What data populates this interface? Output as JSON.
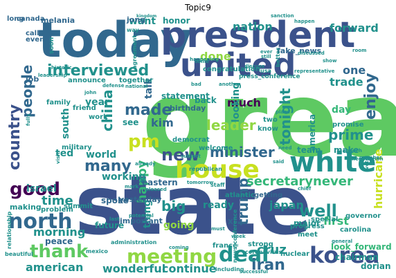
{
  "title": "Topic9",
  "palette": {
    "purple": "#440154",
    "indigo": "#3b528b",
    "blue": "#31688e",
    "teal": "#21918c",
    "green": "#35b779",
    "lime": "#5ec962",
    "yellowgreen": "#90d743",
    "yellow": "#c8e020"
  },
  "words": [
    {
      "id": "great",
      "text": "great"
    },
    {
      "id": "state",
      "text": "state"
    },
    {
      "id": "today",
      "text": "today"
    },
    {
      "id": "president",
      "text": "president"
    },
    {
      "id": "united",
      "text": "united"
    },
    {
      "id": "white",
      "text": "white"
    },
    {
      "id": "house",
      "text": "house"
    },
    {
      "id": "korea",
      "text": "korea"
    },
    {
      "id": "meeting",
      "text": "meeting"
    },
    {
      "id": "north",
      "text": "north"
    },
    {
      "id": "deal",
      "text": "deal"
    },
    {
      "id": "thank",
      "text": "thank"
    },
    {
      "id": "good",
      "text": "good"
    },
    {
      "id": "new",
      "text": "new"
    },
    {
      "id": "pm",
      "text": "pm"
    },
    {
      "id": "interviewed",
      "text": "interviewed"
    },
    {
      "id": "country",
      "text": "country"
    },
    {
      "id": "people",
      "text": "people"
    },
    {
      "id": "china",
      "text": "china"
    },
    {
      "id": "made",
      "text": "made"
    },
    {
      "id": "many",
      "text": "many"
    },
    {
      "id": "iran",
      "text": "iran"
    },
    {
      "id": "minister",
      "text": "minister"
    },
    {
      "id": "leader",
      "text": "leader"
    },
    {
      "id": "enjoy",
      "text": "enjoy"
    },
    {
      "id": "well",
      "text": "well"
    },
    {
      "id": "trump",
      "text": "trump"
    },
    {
      "id": "prime",
      "text": "prime"
    },
    {
      "id": "nation",
      "text": "nation"
    },
    {
      "id": "forward",
      "text": "forward"
    },
    {
      "id": "done",
      "text": "done"
    },
    {
      "id": "tonight",
      "text": "tonight"
    },
    {
      "id": "american",
      "text": "american"
    },
    {
      "id": "wonderful",
      "text": "wonderful"
    },
    {
      "id": "continue",
      "text": "continue"
    },
    {
      "id": "big",
      "text": "big"
    },
    {
      "id": "secretary",
      "text": "secretary"
    },
    {
      "id": "never",
      "text": "never"
    },
    {
      "id": "japan",
      "text": "japan"
    },
    {
      "id": "cruz",
      "text": "cruz"
    },
    {
      "id": "happy",
      "text": "happy"
    },
    {
      "id": "kim",
      "text": "kim"
    },
    {
      "id": "much",
      "text": "much"
    },
    {
      "id": "trade",
      "text": "trade"
    },
    {
      "id": "one",
      "text": "one"
    },
    {
      "id": "hurricane",
      "text": "hurricane"
    },
    {
      "id": "first",
      "text": "first"
    },
    {
      "id": "morning",
      "text": "morning"
    },
    {
      "id": "time",
      "text": "time"
    },
    {
      "id": "israel",
      "text": "israel"
    },
    {
      "id": "ted",
      "text": "ted"
    },
    {
      "id": "world",
      "text": "world"
    },
    {
      "id": "working",
      "text": "working"
    },
    {
      "id": "going",
      "text": "going"
    },
    {
      "id": "thing",
      "text": "thing"
    },
    {
      "id": "ready",
      "text": "ready"
    },
    {
      "id": "america",
      "text": "america"
    },
    {
      "id": "day",
      "text": "day"
    },
    {
      "id": "make",
      "text": "make"
    },
    {
      "id": "team",
      "text": "team"
    },
    {
      "id": "year",
      "text": "year"
    },
    {
      "id": "want",
      "text": "want"
    },
    {
      "id": "honor",
      "text": "honor"
    },
    {
      "id": "talk",
      "text": "talk"
    },
    {
      "id": "see",
      "text": "see"
    },
    {
      "id": "peace",
      "text": "peace"
    },
    {
      "id": "south",
      "text": "south"
    },
    {
      "id": "statement",
      "text": "statement"
    },
    {
      "id": "looking",
      "text": "looking"
    },
    {
      "id": "look_forward",
      "text": "look_forward"
    },
    {
      "id": "melania",
      "text": "melania"
    },
    {
      "id": "jong",
      "text": "jong"
    },
    {
      "id": "fake_news",
      "text": "fake_news"
    },
    {
      "id": "major",
      "text": "major"
    },
    {
      "id": "xi",
      "text": "xi"
    },
    {
      "id": "future",
      "text": "future"
    },
    {
      "id": "spoke",
      "text": "spoke"
    },
    {
      "id": "important",
      "text": "important"
    },
    {
      "id": "yesterday",
      "text": "yesterday"
    },
    {
      "id": "eastern",
      "text": "eastern"
    },
    {
      "id": "birthday",
      "text": "birthday"
    },
    {
      "id": "job",
      "text": "job"
    },
    {
      "id": "long",
      "text": "long"
    },
    {
      "id": "canada",
      "text": "canada"
    },
    {
      "id": "call",
      "text": "call"
    },
    {
      "id": "even",
      "text": "even"
    },
    {
      "id": "announce",
      "text": "announce"
    },
    {
      "id": "together",
      "text": "together"
    },
    {
      "id": "congratulation",
      "text": "congratulation"
    },
    {
      "id": "press_conference",
      "text": "press_conference"
    },
    {
      "id": "democrat",
      "text": "democrat"
    },
    {
      "id": "welcome",
      "text": "welcome"
    },
    {
      "id": "atlantic",
      "text": "atlantic"
    },
    {
      "id": "getting",
      "text": "getting"
    },
    {
      "id": "back",
      "text": "back"
    },
    {
      "id": "two",
      "text": "two"
    },
    {
      "id": "know",
      "text": "know"
    },
    {
      "id": "promise",
      "text": "promise"
    },
    {
      "id": "family",
      "text": "family"
    },
    {
      "id": "friend",
      "text": "friend"
    },
    {
      "id": "work",
      "text": "work"
    },
    {
      "id": "military",
      "text": "military"
    },
    {
      "id": "problem",
      "text": "problem"
    },
    {
      "id": "making",
      "text": "making"
    },
    {
      "id": "summit",
      "text": "summit"
    },
    {
      "id": "news_conference",
      "text": "news_conference"
    },
    {
      "id": "strong",
      "text": "strong"
    },
    {
      "id": "france",
      "text": "france"
    },
    {
      "id": "nuclear",
      "text": "nuclear"
    },
    {
      "id": "progress",
      "text": "progress"
    },
    {
      "id": "chairman",
      "text": "chairman"
    },
    {
      "id": "dorian",
      "text": "dorian"
    },
    {
      "id": "carolina",
      "text": "carolina"
    },
    {
      "id": "governor",
      "text": "governor"
    },
    {
      "id": "special",
      "text": "special"
    },
    {
      "id": "meet",
      "text": "meet"
    },
    {
      "id": "coronavirus",
      "text": "coronavirus"
    },
    {
      "id": "including",
      "text": "including"
    },
    {
      "id": "administration",
      "text": "administration"
    },
    {
      "id": "mexico",
      "text": "mexico"
    },
    {
      "id": "beautiful",
      "text": "beautiful"
    },
    {
      "id": "relationship",
      "text": "relationship"
    },
    {
      "id": "soon",
      "text": "soon"
    },
    {
      "id": "way",
      "text": "way"
    },
    {
      "id": "kingdom",
      "text": "kingdom"
    },
    {
      "id": "sanction",
      "text": "sanction"
    },
    {
      "id": "happen",
      "text": "happen"
    },
    {
      "id": "discussed",
      "text": "discussed"
    },
    {
      "id": "show",
      "text": "show"
    },
    {
      "id": "usa",
      "text": "usa"
    },
    {
      "id": "representative",
      "text": "representative"
    },
    {
      "id": "national",
      "text": "national"
    },
    {
      "id": "defense",
      "text": "defense"
    },
    {
      "id": "leadership",
      "text": "leadership"
    },
    {
      "id": "historic",
      "text": "historic"
    },
    {
      "id": "agreement",
      "text": "agreement"
    },
    {
      "id": "come",
      "text": "come"
    },
    {
      "id": "another",
      "text": "another"
    },
    {
      "id": "better",
      "text": "better"
    },
    {
      "id": "room",
      "text": "room"
    },
    {
      "id": "visit",
      "text": "visit"
    },
    {
      "id": "john",
      "text": "john"
    },
    {
      "id": "republican",
      "text": "republican"
    },
    {
      "id": "staff",
      "text": "staff"
    },
    {
      "id": "tomorrow",
      "text": "tomorrow"
    },
    {
      "id": "need",
      "text": "need"
    },
    {
      "id": "said",
      "text": "said"
    },
    {
      "id": "potential",
      "text": "potential"
    },
    {
      "id": "must",
      "text": "must"
    },
    {
      "id": "last",
      "text": "last"
    },
    {
      "id": "week",
      "text": "week"
    },
    {
      "id": "successful",
      "text": "successful"
    },
    {
      "id": "general",
      "text": "general"
    },
    {
      "id": "coming",
      "text": "coming"
    },
    {
      "id": "already",
      "text": "already"
    },
    {
      "id": "pleased",
      "text": "pleased"
    },
    {
      "id": "vote",
      "text": "vote"
    },
    {
      "id": "speech",
      "text": "speech"
    },
    {
      "id": "chief",
      "text": "chief"
    },
    {
      "id": "happening",
      "text": "happening"
    },
    {
      "id": "bad",
      "text": "bad"
    },
    {
      "id": "mark",
      "text": "mark"
    },
    {
      "id": "fully",
      "text": "fully"
    },
    {
      "id": "discuss",
      "text": "discuss"
    },
    {
      "id": "subject",
      "text": "subject"
    },
    {
      "id": "negotiation",
      "text": "negotiation"
    },
    {
      "id": "member",
      "text": "member"
    },
    {
      "id": "place",
      "text": "place"
    },
    {
      "id": "still",
      "text": "still"
    },
    {
      "id": "ever",
      "text": "ever"
    }
  ]
}
